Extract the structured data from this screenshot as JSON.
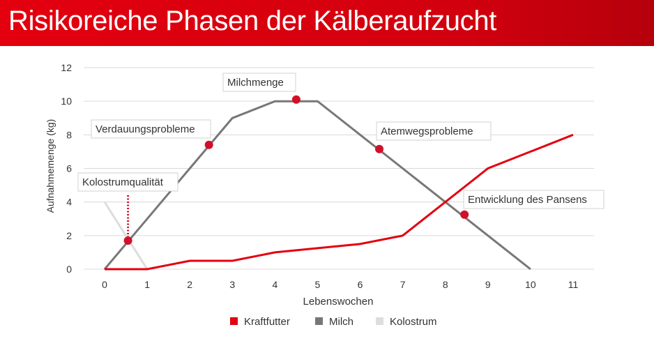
{
  "header": {
    "title": "Risikoreiche Phasen der Kälberaufzucht"
  },
  "chart_data": {
    "type": "line",
    "xlabel": "Lebenswochen",
    "ylabel": "Aufnahmemenge (kg)",
    "xlim": [
      0,
      11
    ],
    "ylim": [
      0,
      12
    ],
    "xticks": [
      "0",
      "1",
      "2",
      "3",
      "4",
      "5",
      "6",
      "7",
      "8",
      "9",
      "10",
      "11"
    ],
    "yticks": [
      "0",
      "2",
      "4",
      "6",
      "8",
      "10",
      "12"
    ],
    "grid": true,
    "legend_position": "bottom",
    "series": [
      {
        "name": "Kraftfutter",
        "color": "#e3000f",
        "points": [
          [
            0,
            0
          ],
          [
            1,
            0
          ],
          [
            2,
            0.5
          ],
          [
            3,
            0.5
          ],
          [
            4,
            1
          ],
          [
            5,
            1.25
          ],
          [
            6,
            1.5
          ],
          [
            7,
            2
          ],
          [
            8,
            4
          ],
          [
            9,
            6
          ],
          [
            10,
            7
          ],
          [
            11,
            8
          ]
        ]
      },
      {
        "name": "Milch",
        "color": "#777777",
        "points": [
          [
            0,
            0
          ],
          [
            1,
            3
          ],
          [
            2,
            6
          ],
          [
            3,
            9
          ],
          [
            4,
            10
          ],
          [
            5,
            10
          ],
          [
            6,
            8
          ],
          [
            7,
            6
          ],
          [
            8,
            4
          ],
          [
            9,
            2
          ],
          [
            10,
            0
          ]
        ]
      },
      {
        "name": "Kolostrum",
        "color": "#dddddd",
        "points": [
          [
            0,
            4
          ],
          [
            1,
            0
          ]
        ]
      }
    ],
    "annotations": [
      {
        "label": "Kolostrumqualität",
        "x": 0.55,
        "y": 1.7,
        "dotted_line_to_y": 4.4
      },
      {
        "label": "Verdauungsprobleme",
        "x": 2.45,
        "y": 7.4
      },
      {
        "label": "Milchmenge",
        "x": 4.5,
        "y": 10.1
      },
      {
        "label": "Atemwegsprobleme",
        "x": 6.45,
        "y": 7.15
      },
      {
        "label": "Entwicklung des Pansens",
        "x": 8.45,
        "y": 3.25
      }
    ],
    "annotation_color": "#d2102a"
  }
}
